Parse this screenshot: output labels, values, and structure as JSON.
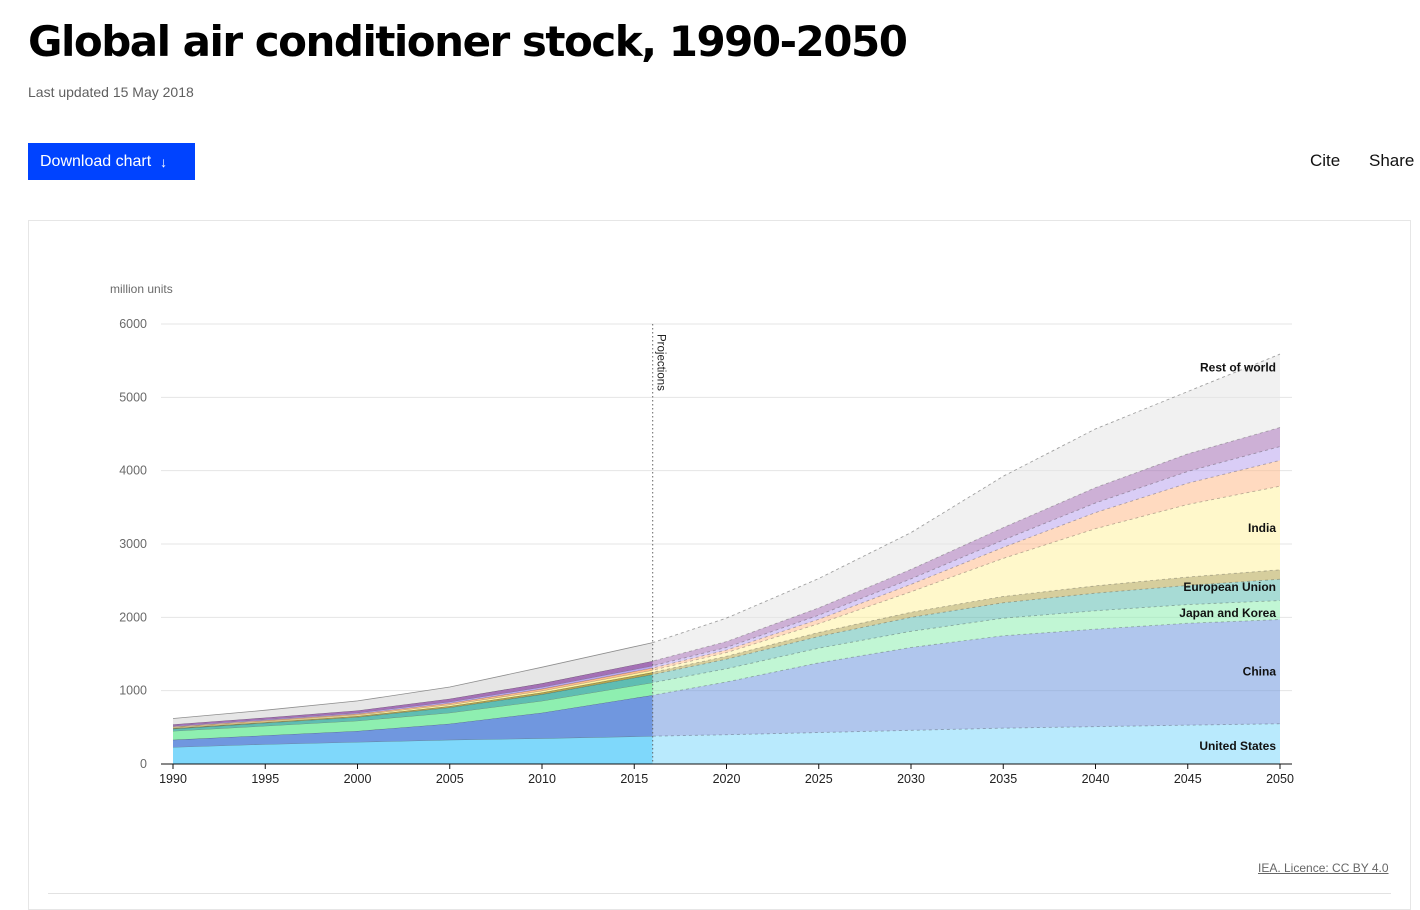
{
  "page": {
    "title": "Global air conditioner stock, 1990-2050",
    "updated": "Last updated 15 May 2018",
    "download_label": "Download chart",
    "download_icon": "arrow-down-icon",
    "cite_label": "Cite",
    "share_label": "Share",
    "source_label": "IEA. Licence: CC BY 4.0"
  },
  "chart_data": {
    "type": "area",
    "stacked": true,
    "ylabel": "million units",
    "ylim": [
      0,
      6000
    ],
    "yticks": [
      0,
      1000,
      2000,
      3000,
      4000,
      5000,
      6000
    ],
    "xlim": [
      1990,
      2050
    ],
    "xticks": [
      1990,
      1995,
      2000,
      2005,
      2010,
      2015,
      2020,
      2025,
      2030,
      2035,
      2040,
      2045,
      2050
    ],
    "grid": true,
    "projection_start": 2016,
    "projection_label": "Projections",
    "x": [
      1990,
      1995,
      2000,
      2005,
      2010,
      2016,
      2020,
      2025,
      2030,
      2035,
      2040,
      2045,
      2050
    ],
    "series": [
      {
        "name": "United States",
        "label": "United States",
        "color": "#7fd8fb",
        "values": [
          230,
          270,
          300,
          330,
          350,
          380,
          400,
          430,
          460,
          490,
          510,
          530,
          550
        ]
      },
      {
        "name": "China",
        "label": "China",
        "color": "#7097df",
        "values": [
          100,
          120,
          150,
          220,
          350,
          560,
          720,
          950,
          1130,
          1260,
          1330,
          1390,
          1420
        ]
      },
      {
        "name": "Japan and Korea",
        "label": "Japan and Korea",
        "color": "#8eefb0",
        "values": [
          120,
          130,
          140,
          150,
          160,
          170,
          180,
          200,
          220,
          240,
          250,
          255,
          260
        ]
      },
      {
        "name": "European Union",
        "label": "European Union",
        "color": "#5fbdb2",
        "values": [
          30,
          40,
          50,
          70,
          90,
          110,
          130,
          160,
          190,
          210,
          240,
          260,
          290
        ]
      },
      {
        "name": "",
        "color": "#b5a54d",
        "values": [
          10,
          12,
          15,
          20,
          25,
          30,
          40,
          55,
          70,
          85,
          100,
          115,
          130
        ]
      },
      {
        "name": "India",
        "label": "India",
        "color": "#fff3a0",
        "values": [
          10,
          12,
          15,
          20,
          25,
          30,
          50,
          120,
          280,
          520,
          780,
          990,
          1140
        ]
      },
      {
        "name": "",
        "color": "#ffbc8c",
        "values": [
          10,
          12,
          15,
          20,
          25,
          30,
          35,
          60,
          100,
          150,
          220,
          290,
          350
        ]
      },
      {
        "name": "",
        "color": "#b9a4ef",
        "values": [
          10,
          12,
          15,
          20,
          25,
          30,
          35,
          55,
          75,
          100,
          130,
          160,
          190
        ]
      },
      {
        "name": "",
        "color": "#a470b5",
        "values": [
          20,
          25,
          30,
          40,
          50,
          65,
          80,
          100,
          130,
          170,
          210,
          240,
          260
        ]
      },
      {
        "name": "Rest of world",
        "label": "Rest of world",
        "color": "#e6e6e6",
        "values": [
          80,
          100,
          130,
          160,
          220,
          250,
          320,
          400,
          500,
          700,
          800,
          850,
          1000
        ]
      }
    ]
  }
}
